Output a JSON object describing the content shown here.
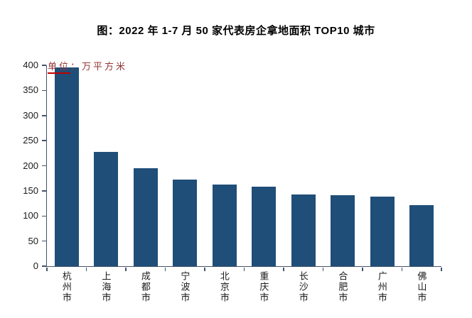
{
  "title": "图：2022 年 1-7 月 50 家代表房企拿地面积 TOP10 城市",
  "unit": {
    "underlined": "单位",
    "separator": "：",
    "rest": "万平方米"
  },
  "colors": {
    "bar": "#1F4E79",
    "axis": "#44546A",
    "unit_text": "#953735",
    "unit_underline": "#C00000",
    "tick_text": "#1a1a1a",
    "background": "#FFFFFF"
  },
  "chart_data": {
    "type": "bar",
    "title": "图：2022 年 1-7 月 50 家代表房企拿地面积 TOP10 城市",
    "unit": "单位：万平方米",
    "categories": [
      "杭州市",
      "上海市",
      "成都市",
      "宁波市",
      "北京市",
      "重庆市",
      "长沙市",
      "合肥市",
      "广州市",
      "佛山市"
    ],
    "values": [
      396,
      228,
      195,
      172,
      163,
      158,
      143,
      141,
      139,
      121
    ],
    "xlabel": "",
    "ylabel": "",
    "ylim": [
      0,
      400
    ],
    "yticks": [
      0,
      50,
      100,
      150,
      200,
      250,
      300,
      350,
      400
    ],
    "grid": false,
    "legend_position": "none"
  }
}
